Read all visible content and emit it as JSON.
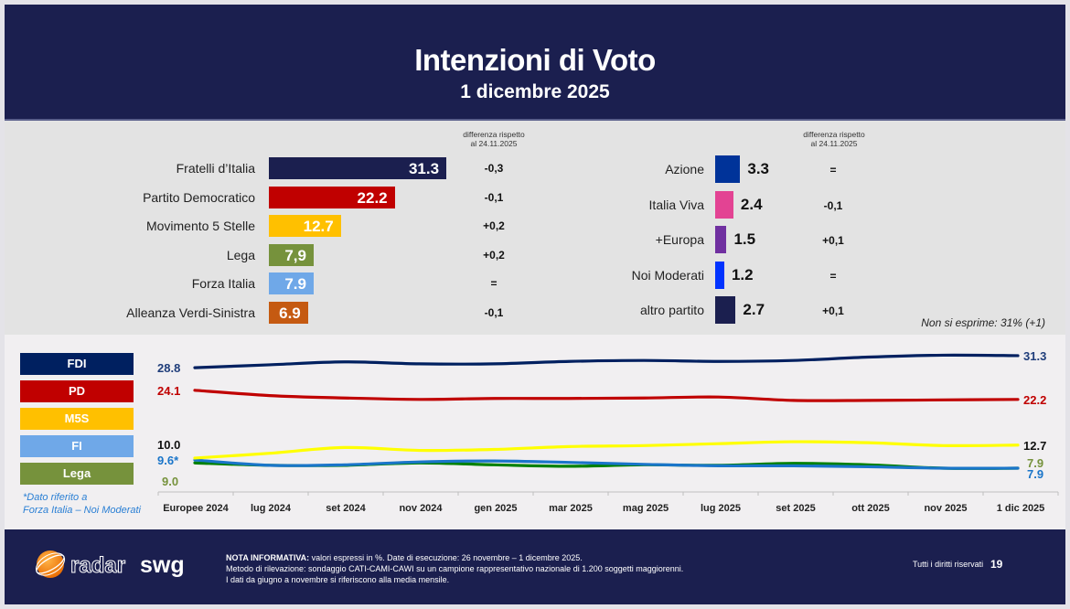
{
  "header": {
    "title": "Intenzioni di Voto",
    "subtitle": "1 dicembre 2025"
  },
  "diff_header": {
    "line1": "differenza rispetto",
    "line2": "al 24.11.2025"
  },
  "main_parties": [
    {
      "name": "Fratelli d’Italia",
      "value": 31.3,
      "label": "31.3",
      "diff": "-0,3",
      "color": "#1b1f4f"
    },
    {
      "name": "Partito Democratico",
      "value": 22.2,
      "label": "22.2",
      "diff": "-0,1",
      "color": "#c00000"
    },
    {
      "name": "Movimento 5 Stelle",
      "value": 12.7,
      "label": "12.7",
      "diff": "+0,2",
      "color": "#ffc000"
    },
    {
      "name": "Lega",
      "value": 7.9,
      "label": "7,9",
      "diff": "+0,2",
      "color": "#76923c"
    },
    {
      "name": "Forza Italia",
      "value": 7.9,
      "label": "7.9",
      "diff": "=",
      "color": "#6fa8e8"
    },
    {
      "name": "Alleanza Verdi-Sinistra",
      "value": 6.9,
      "label": "6.9",
      "diff": "-0,1",
      "color": "#c55a11"
    }
  ],
  "minor_parties": [
    {
      "name": "Azione",
      "value": 3.3,
      "label": "3.3",
      "diff": "=",
      "color": "#003399"
    },
    {
      "name": "Italia Viva",
      "value": 2.4,
      "label": "2.4",
      "diff": "-0,1",
      "color": "#e34393"
    },
    {
      "name": "+Europa",
      "value": 1.5,
      "label": "1.5",
      "diff": "+0,1",
      "color": "#7030a0"
    },
    {
      "name": "Noi Moderati",
      "value": 1.2,
      "label": "1.2",
      "diff": "=",
      "color": "#0033ff"
    },
    {
      "name": "altro partito",
      "value": 2.7,
      "label": "2.7",
      "diff": "+0,1",
      "color": "#1b1f4f"
    }
  ],
  "non_si_esprime": "Non si esprime: 31% (+1)",
  "legend": [
    {
      "label": "FDI",
      "color": "#002060"
    },
    {
      "label": "PD",
      "color": "#c00000"
    },
    {
      "label": "M5S",
      "color": "#ffc000"
    },
    {
      "label": "FI",
      "color": "#6fa8e8"
    },
    {
      "label": "Lega",
      "color": "#76923c"
    }
  ],
  "footnote": {
    "line1": "*Dato riferito a",
    "line2": "Forza Italia – Noi Moderati"
  },
  "chart_data": {
    "type": "line",
    "title": "",
    "xlabel": "",
    "ylabel": "",
    "categories": [
      "Europee 2024",
      "lug 2024",
      "set 2024",
      "nov 2024",
      "gen 2025",
      "mar 2025",
      "mag 2025",
      "lug 2025",
      "set 2025",
      "ott 2025",
      "nov 2025",
      "1 dic 2025"
    ],
    "grid": false,
    "legend_position": "left",
    "series": [
      {
        "name": "FDI",
        "color": "#002060",
        "start_label": "28.8",
        "end_label": "31.3",
        "values": [
          28.8,
          29.4,
          30.0,
          29.6,
          29.6,
          30.1,
          30.3,
          30.1,
          30.3,
          31.0,
          31.4,
          31.3
        ]
      },
      {
        "name": "PD",
        "color": "#c00000",
        "start_label": "24.1",
        "end_label": "22.2",
        "values": [
          24.1,
          23.0,
          22.5,
          22.2,
          22.4,
          22.4,
          22.5,
          22.7,
          22.0,
          22.0,
          22.1,
          22.2
        ]
      },
      {
        "name": "M5S",
        "color": "#ffff00",
        "start_label": "10.0",
        "end_label": "12.7",
        "values": [
          10.0,
          11.0,
          12.2,
          11.6,
          11.8,
          12.4,
          12.6,
          13.0,
          13.4,
          13.2,
          12.6,
          12.7
        ]
      },
      {
        "name": "FI",
        "color": "#1a75c9",
        "start_label": "9.6*",
        "end_label": "7.9",
        "values": [
          9.6,
          8.5,
          8.6,
          9.2,
          9.4,
          9.1,
          8.7,
          8.4,
          8.4,
          8.2,
          7.9,
          7.9
        ]
      },
      {
        "name": "Lega",
        "color": "#008000",
        "start_label": "9.0",
        "end_label": "7.9",
        "values": [
          9.0,
          8.5,
          8.5,
          9.0,
          8.6,
          8.3,
          8.6,
          8.5,
          8.9,
          8.6,
          7.9,
          7.9
        ]
      }
    ],
    "ylim": [
      6,
      33
    ]
  },
  "footer": {
    "brand_part1": "radar",
    "brand_part2": "swg",
    "note_label": "NOTA INFORMATIVA:",
    "note_line1": " valori espressi in %. Date di esecuzione: 26 novembre – 1 dicembre 2025.",
    "note_line2": "Metodo di rilevazione: sondaggio CATI-CAMI-CAWI su un campione rappresentativo nazionale di 1.200 soggetti maggiorenni.",
    "note_line3": "I dati da giugno a novembre si riferiscono alla media mensile.",
    "rights": "Tutti i diritti riservati",
    "page": "19"
  }
}
